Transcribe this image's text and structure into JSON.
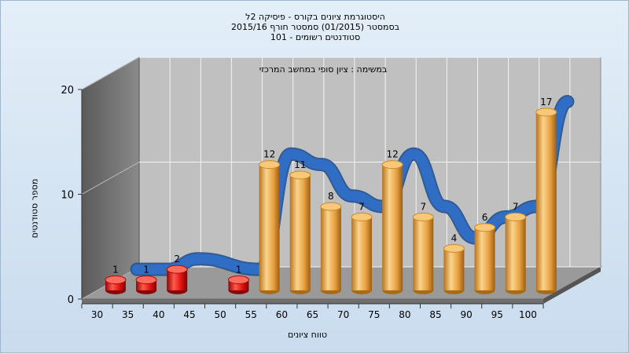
{
  "header": {
    "line1": "היסטוגרמת ציונים בקורס - פיסיקה 2ל",
    "line2": "בסמסטר  (01/2015)  סמסטר חורף 2015/16",
    "line3": "סטודנטים רשומים - 101"
  },
  "chart_data": {
    "type": "bar",
    "subtitle": "במשימה : ציון סופי במחשב המרכזי",
    "xlabel": "טווח ציונים",
    "ylabel": "מספר סטודנטים",
    "categories": [
      "30",
      "35",
      "40",
      "45",
      "50",
      "55",
      "60",
      "65",
      "70",
      "75",
      "80",
      "85",
      "90",
      "95",
      "100"
    ],
    "values": [
      1,
      1,
      2,
      null,
      1,
      12,
      11,
      8,
      7,
      12,
      7,
      4,
      6,
      7,
      17
    ],
    "bar_colors": [
      "red",
      "red",
      "red",
      null,
      "red",
      "orange",
      "orange",
      "orange",
      "orange",
      "orange",
      "orange",
      "orange",
      "orange",
      "orange",
      "orange"
    ],
    "y_ticks": [
      0,
      10,
      20
    ],
    "ylim": [
      0,
      20
    ],
    "grid": true,
    "trend_line": true,
    "colors": {
      "fail": "#e01010",
      "pass": "#f0a030",
      "trend": "#2f6ec4",
      "trend_shadow": "#6a6a6a"
    }
  }
}
